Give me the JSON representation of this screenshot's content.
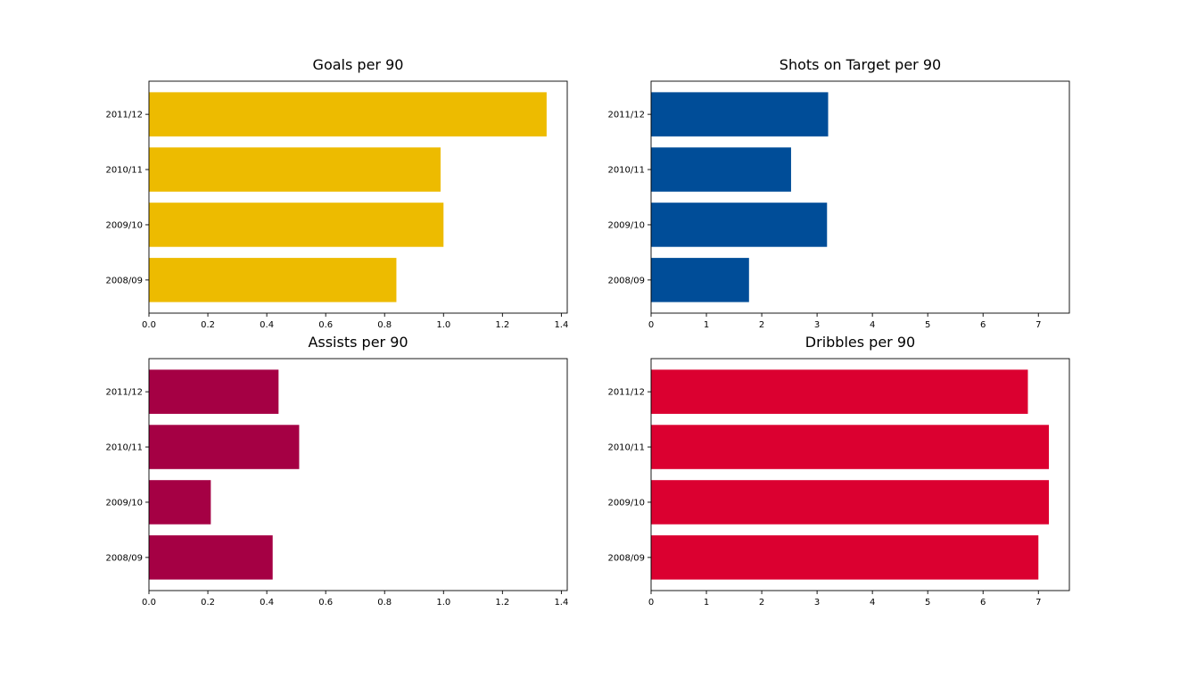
{
  "chart_data": [
    {
      "type": "bar",
      "orientation": "horizontal",
      "title": "Goals per 90",
      "categories": [
        "2008/09",
        "2009/10",
        "2010/11",
        "2011/12"
      ],
      "values": [
        0.84,
        1.0,
        0.99,
        1.35
      ],
      "color": "#EDBB00",
      "xlim": [
        0,
        1.42
      ],
      "xticks": [
        "0.0",
        "0.2",
        "0.4",
        "0.6",
        "0.8",
        "1.0",
        "1.2",
        "1.4"
      ],
      "xlabel": "",
      "ylabel": "",
      "grid": false
    },
    {
      "type": "bar",
      "orientation": "horizontal",
      "title": "Shots on Target per 90",
      "categories": [
        "2008/09",
        "2009/10",
        "2010/11",
        "2011/12"
      ],
      "values": [
        1.77,
        3.18,
        2.53,
        3.2
      ],
      "color": "#004D98",
      "xlim": [
        0,
        7.56
      ],
      "xticks": [
        "0",
        "1",
        "2",
        "3",
        "4",
        "5",
        "6",
        "7"
      ],
      "xlabel": "",
      "ylabel": "",
      "grid": false
    },
    {
      "type": "bar",
      "orientation": "horizontal",
      "title": "Assists per 90",
      "categories": [
        "2008/09",
        "2009/10",
        "2010/11",
        "2011/12"
      ],
      "values": [
        0.42,
        0.21,
        0.51,
        0.44
      ],
      "color": "#A50044",
      "xlim": [
        0,
        1.42
      ],
      "xticks": [
        "0.0",
        "0.2",
        "0.4",
        "0.6",
        "0.8",
        "1.0",
        "1.2",
        "1.4"
      ],
      "xlabel": "",
      "ylabel": "",
      "grid": false
    },
    {
      "type": "bar",
      "orientation": "horizontal",
      "title": "Dribbles per 90",
      "categories": [
        "2008/09",
        "2009/10",
        "2010/11",
        "2011/12"
      ],
      "values": [
        7.0,
        7.19,
        7.19,
        6.81
      ],
      "color": "#DB0030",
      "xlim": [
        0,
        7.56
      ],
      "xticks": [
        "0",
        "1",
        "2",
        "3",
        "4",
        "5",
        "6",
        "7"
      ],
      "xlabel": "",
      "ylabel": "",
      "grid": false
    }
  ]
}
